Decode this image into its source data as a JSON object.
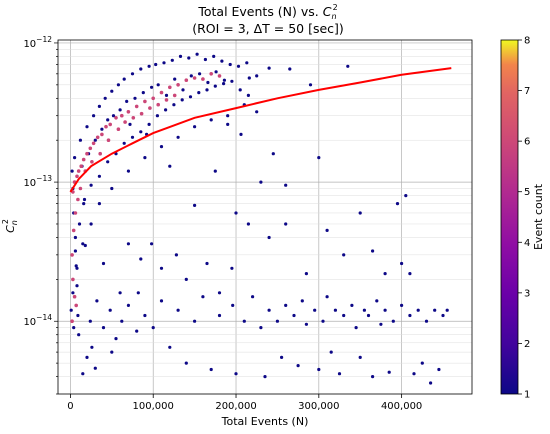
{
  "chart_data": {
    "type": "scatter",
    "title_line1": "Total Events (N)  vs. ",
    "title_symbol": "C",
    "title_symbol_sub": "n",
    "title_symbol_sup": "2",
    "title_line2": "(ROI = 3, ΔT = 50 [sec])",
    "xlabel": "Total Events (N)",
    "ylabel_symbol": "C",
    "ylabel_sub": "n",
    "ylabel_sup": "2",
    "x_scale": "linear",
    "y_scale": "log",
    "xlim": [
      -15000,
      485000
    ],
    "ylim": [
      3e-15,
      1.05e-12
    ],
    "x_ticks": [
      0,
      100000,
      200000,
      300000,
      400000
    ],
    "x_tick_labels": [
      "0",
      "100,000",
      "200,000",
      "300,000",
      "400,000"
    ],
    "y_major_ticks": [
      1e-14,
      1e-13,
      1e-12
    ],
    "y_tick_base": "10",
    "y_tick_exponents": [
      "−14",
      "−13",
      "−12"
    ],
    "grid": true,
    "colormap": "plasma",
    "colorbar": {
      "label": "Event count",
      "min": 1,
      "max": 8,
      "ticks": [
        1,
        2,
        3,
        4,
        5,
        6,
        7,
        8
      ],
      "tick_labels": [
        "1",
        "2",
        "3",
        "4",
        "5",
        "6",
        "7",
        "8"
      ]
    },
    "fit_line": {
      "color": "#ff0000",
      "x": [
        0,
        10000,
        25000,
        50000,
        75000,
        100000,
        150000,
        200000,
        250000,
        300000,
        350000,
        400000,
        460000
      ],
      "y": [
        8.5e-14,
        1.05e-13,
        1.3e-13,
        1.6e-13,
        1.9e-13,
        2.25e-13,
        2.9e-13,
        3.4e-13,
        4e-13,
        4.6e-13,
        5.2e-13,
        5.9e-13,
        6.6e-13
      ]
    },
    "series": [
      {
        "marker_color": "#0d0887",
        "points": [
          [
            2000,
            1.2e-13
          ],
          [
            3000,
            9e-14
          ],
          [
            4000,
            6e-14
          ],
          [
            5000,
            1.5e-13
          ],
          [
            6000,
            4e-14
          ],
          [
            7000,
            2.5e-14
          ],
          [
            8000,
            1.8e-14
          ],
          [
            9000,
            1.1e-14
          ],
          [
            10000,
            8e-15
          ],
          [
            12000,
            2e-13
          ],
          [
            14000,
            1.3e-13
          ],
          [
            16000,
            7e-14
          ],
          [
            18000,
            3.5e-14
          ],
          [
            20000,
            2.5e-13
          ],
          [
            22000,
            1.6e-13
          ],
          [
            24000,
            1e-14
          ],
          [
            26000,
            6.5e-15
          ],
          [
            28000,
            3e-13
          ],
          [
            30000,
            2e-13
          ],
          [
            32000,
            1.4e-14
          ],
          [
            35000,
            3.5e-13
          ],
          [
            38000,
            2.4e-13
          ],
          [
            40000,
            9e-15
          ],
          [
            42000,
            4e-13
          ],
          [
            45000,
            2.8e-13
          ],
          [
            48000,
            1.2e-14
          ],
          [
            50000,
            4.5e-13
          ],
          [
            52000,
            3e-13
          ],
          [
            55000,
            7.5e-15
          ],
          [
            58000,
            5e-13
          ],
          [
            60000,
            3.3e-13
          ],
          [
            62000,
            1e-14
          ],
          [
            65000,
            5.5e-13
          ],
          [
            68000,
            3.8e-13
          ],
          [
            70000,
            1.3e-14
          ],
          [
            72000,
            2.6e-13
          ],
          [
            75000,
            6e-13
          ],
          [
            78000,
            4e-13
          ],
          [
            80000,
            8.5e-15
          ],
          [
            82000,
            1.6e-14
          ],
          [
            85000,
            6.5e-13
          ],
          [
            88000,
            4.4e-13
          ],
          [
            90000,
            1.1e-14
          ],
          [
            92000,
            2.2e-13
          ],
          [
            95000,
            6.8e-13
          ],
          [
            98000,
            4.8e-13
          ],
          [
            100000,
            9e-15
          ],
          [
            103000,
            7e-13
          ],
          [
            106000,
            5e-13
          ],
          [
            110000,
            1.4e-14
          ],
          [
            113000,
            7.2e-13
          ],
          [
            116000,
            4.2e-13
          ],
          [
            120000,
            6.5e-15
          ],
          [
            123000,
            7.5e-13
          ],
          [
            126000,
            5.5e-13
          ],
          [
            130000,
            1.2e-14
          ],
          [
            133000,
            8e-13
          ],
          [
            136000,
            4.6e-13
          ],
          [
            140000,
            5e-15
          ],
          [
            143000,
            7.8e-13
          ],
          [
            146000,
            5.8e-13
          ],
          [
            150000,
            1e-14
          ],
          [
            153000,
            8.3e-13
          ],
          [
            156000,
            6e-13
          ],
          [
            160000,
            1.5e-14
          ],
          [
            163000,
            7.6e-13
          ],
          [
            166000,
            5.2e-13
          ],
          [
            170000,
            4.5e-15
          ],
          [
            173000,
            8e-13
          ],
          [
            176000,
            6.2e-13
          ],
          [
            180000,
            1.1e-14
          ],
          [
            183000,
            7.4e-13
          ],
          [
            186000,
            5.4e-13
          ],
          [
            190000,
            2.6e-13
          ],
          [
            193000,
            7e-13
          ],
          [
            196000,
            1.3e-14
          ],
          [
            200000,
            4.2e-15
          ],
          [
            203000,
            6.8e-13
          ],
          [
            206000,
            2.2e-13
          ],
          [
            210000,
            1e-14
          ],
          [
            213000,
            7.2e-13
          ],
          [
            216000,
            5.6e-13
          ],
          [
            220000,
            1.5e-14
          ],
          [
            225000,
            3.2e-13
          ],
          [
            230000,
            9e-15
          ],
          [
            235000,
            4e-15
          ],
          [
            240000,
            1.2e-14
          ],
          [
            245000,
            1.6e-13
          ],
          [
            250000,
            1e-14
          ],
          [
            255000,
            5.5e-15
          ],
          [
            260000,
            1.3e-14
          ],
          [
            265000,
            6.5e-13
          ],
          [
            270000,
            1.1e-14
          ],
          [
            275000,
            4.8e-15
          ],
          [
            280000,
            1.4e-14
          ],
          [
            285000,
            9.5e-15
          ],
          [
            290000,
            5e-13
          ],
          [
            295000,
            1.2e-14
          ],
          [
            300000,
            4.5e-15
          ],
          [
            305000,
            1e-14
          ],
          [
            310000,
            1.5e-14
          ],
          [
            315000,
            6e-15
          ],
          [
            320000,
            1.2e-14
          ],
          [
            325000,
            4.2e-15
          ],
          [
            330000,
            1.1e-14
          ],
          [
            335000,
            6.8e-13
          ],
          [
            340000,
            1.3e-14
          ],
          [
            345000,
            9e-15
          ],
          [
            350000,
            5.5e-15
          ],
          [
            355000,
            1.2e-14
          ],
          [
            360000,
            1.1e-14
          ],
          [
            365000,
            4e-15
          ],
          [
            370000,
            1.4e-14
          ],
          [
            375000,
            9.5e-15
          ],
          [
            380000,
            1.2e-14
          ],
          [
            385000,
            4.3e-15
          ],
          [
            390000,
            1e-14
          ],
          [
            395000,
            7e-14
          ],
          [
            400000,
            1.3e-14
          ],
          [
            405000,
            8e-14
          ],
          [
            410000,
            1.1e-14
          ],
          [
            415000,
            4.2e-15
          ],
          [
            420000,
            1.2e-14
          ],
          [
            425000,
            5e-15
          ],
          [
            430000,
            1e-14
          ],
          [
            435000,
            3.6e-15
          ],
          [
            440000,
            1.2e-14
          ],
          [
            445000,
            4.5e-15
          ],
          [
            450000,
            1.1e-14
          ],
          [
            455000,
            1.2e-14
          ],
          [
            120000,
            1.3e-13
          ],
          [
            150000,
            6.8e-14
          ],
          [
            175000,
            1.2e-13
          ],
          [
            200000,
            6e-14
          ],
          [
            230000,
            1e-13
          ],
          [
            260000,
            5e-14
          ],
          [
            285000,
            2.2e-14
          ],
          [
            310000,
            4.5e-14
          ],
          [
            330000,
            3e-14
          ],
          [
            350000,
            6e-14
          ],
          [
            365000,
            3.2e-14
          ],
          [
            380000,
            2.2e-14
          ],
          [
            400000,
            2.6e-14
          ],
          [
            410000,
            2.2e-14
          ],
          [
            260000,
            9.5e-14
          ],
          [
            300000,
            1.5e-13
          ],
          [
            240000,
            4e-14
          ],
          [
            215000,
            5e-14
          ],
          [
            195000,
            2.4e-14
          ],
          [
            180000,
            1.6e-14
          ],
          [
            165000,
            2.6e-14
          ],
          [
            140000,
            2e-14
          ],
          [
            128000,
            3e-14
          ],
          [
            110000,
            2.4e-14
          ],
          [
            98000,
            3.6e-14
          ],
          [
            85000,
            2.8e-14
          ],
          [
            70000,
            3.6e-14
          ],
          [
            60000,
            1.6e-14
          ],
          [
            50000,
            6e-15
          ],
          [
            40000,
            2.6e-14
          ],
          [
            30000,
            4.6e-15
          ],
          [
            20000,
            5.5e-15
          ],
          [
            15000,
            4.2e-15
          ],
          [
            25000,
            9.5e-14
          ],
          [
            35000,
            1.1e-13
          ],
          [
            45000,
            1.4e-13
          ],
          [
            55000,
            1.6e-13
          ],
          [
            65000,
            1.9e-13
          ],
          [
            75000,
            2.1e-13
          ],
          [
            85000,
            2.3e-13
          ],
          [
            95000,
            2.6e-13
          ],
          [
            105000,
            3e-13
          ],
          [
            115000,
            3.3e-13
          ],
          [
            125000,
            3.6e-13
          ],
          [
            135000,
            3.9e-13
          ],
          [
            145000,
            4.1e-13
          ],
          [
            155000,
            4.4e-13
          ],
          [
            165000,
            4.6e-13
          ],
          [
            175000,
            4.9e-13
          ],
          [
            185000,
            5.1e-13
          ],
          [
            195000,
            5.3e-13
          ],
          [
            205000,
            4.6e-13
          ],
          [
            215000,
            4.2e-13
          ],
          [
            225000,
            5.8e-13
          ],
          [
            240000,
            6.6e-13
          ],
          [
            210000,
            3.6e-13
          ],
          [
            190000,
            3e-13
          ],
          [
            170000,
            2.8e-13
          ],
          [
            150000,
            2.5e-13
          ],
          [
            130000,
            2.1e-13
          ],
          [
            110000,
            1.8e-13
          ],
          [
            90000,
            1.5e-13
          ],
          [
            70000,
            1.2e-13
          ],
          [
            50000,
            9e-14
          ],
          [
            35000,
            7e-14
          ],
          [
            25000,
            5e-14
          ],
          [
            15000,
            3.6e-14
          ],
          [
            8000,
            2.4e-14
          ],
          [
            3000,
            1.6e-14
          ],
          [
            1000,
            1.2e-14
          ],
          [
            6000,
            3.2e-14
          ],
          [
            11000,
            5e-14
          ],
          [
            17000,
            7.5e-14
          ],
          [
            4000,
            9e-15
          ]
        ]
      },
      {
        "marker_color": "#cc4778",
        "points": [
          [
            3000,
            8.5e-14
          ],
          [
            5000,
            1e-13
          ],
          [
            8000,
            1.1e-13
          ],
          [
            10000,
            1.2e-13
          ],
          [
            13000,
            1.3e-13
          ],
          [
            16000,
            1.45e-13
          ],
          [
            20000,
            1.6e-13
          ],
          [
            24000,
            1.75e-13
          ],
          [
            28000,
            1.9e-13
          ],
          [
            33000,
            2.1e-13
          ],
          [
            38000,
            2.2e-13
          ],
          [
            43000,
            2.5e-13
          ],
          [
            48000,
            2.6e-13
          ],
          [
            55000,
            2.9e-13
          ],
          [
            62000,
            3e-13
          ],
          [
            70000,
            3.2e-13
          ],
          [
            80000,
            3.5e-13
          ],
          [
            90000,
            3.8e-13
          ],
          [
            100000,
            4e-13
          ],
          [
            110000,
            4.4e-13
          ],
          [
            120000,
            4.8e-13
          ],
          [
            130000,
            5e-13
          ],
          [
            140000,
            5.4e-13
          ],
          [
            150000,
            5.6e-13
          ],
          [
            160000,
            5.5e-13
          ],
          [
            170000,
            6e-13
          ],
          [
            180000,
            5.8e-13
          ],
          [
            2000,
            3e-14
          ],
          [
            3000,
            2e-14
          ],
          [
            5000,
            1.5e-14
          ],
          [
            4000,
            4.5e-14
          ],
          [
            6000,
            6e-14
          ],
          [
            9000,
            7.5e-14
          ],
          [
            7000,
            1.3e-14
          ],
          [
            2000,
            1e-14
          ],
          [
            12000,
            9e-14
          ],
          [
            18000,
            1.2e-13
          ],
          [
            26000,
            1.4e-13
          ],
          [
            36000,
            1.6e-13
          ],
          [
            46000,
            2e-13
          ],
          [
            58000,
            2.4e-13
          ],
          [
            66000,
            2.7e-13
          ],
          [
            76000,
            2.9e-13
          ],
          [
            86000,
            3.1e-13
          ],
          [
            96000,
            3.4e-13
          ],
          [
            106000,
            3.6e-13
          ],
          [
            116000,
            3.9e-13
          ],
          [
            126000,
            4.2e-13
          ]
        ]
      }
    ]
  }
}
